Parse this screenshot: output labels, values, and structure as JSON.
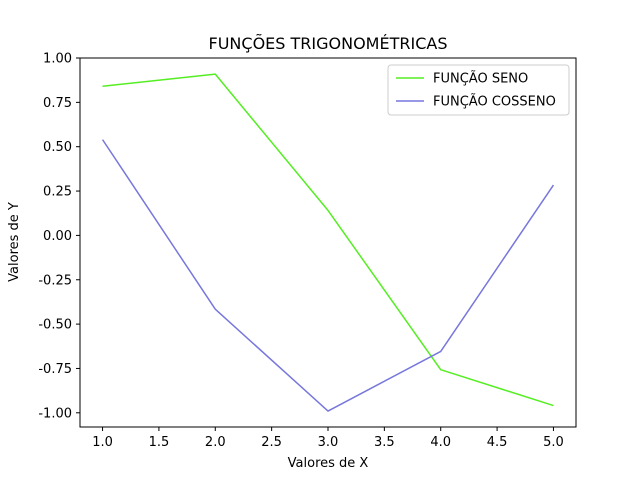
{
  "chart_data": {
    "type": "line",
    "title": "FUNÇÕES TRIGONOMÉTRICAS",
    "xlabel": "Valores de X",
    "ylabel": "Valores de Y",
    "x": [
      1,
      2,
      3,
      4,
      5
    ],
    "xlim": [
      0.8,
      5.2
    ],
    "ylim": [
      -1.08,
      1.0
    ],
    "xticks": [
      "1.0",
      "1.5",
      "2.0",
      "2.5",
      "3.0",
      "3.5",
      "4.0",
      "4.5",
      "5.0"
    ],
    "yticks": [
      "1.00",
      "0.75",
      "0.50",
      "0.25",
      "0.00",
      "-0.25",
      "-0.50",
      "-0.75",
      "-1.00"
    ],
    "grid": false,
    "legend_position": "top-right",
    "series": [
      {
        "name": "FUNÇÃO SENO",
        "color": "#55ee22",
        "values": [
          0.841,
          0.909,
          0.141,
          -0.757,
          -0.959
        ]
      },
      {
        "name": "FUNÇÃO COSSENO",
        "color": "#7777dd",
        "values": [
          0.54,
          -0.416,
          -0.99,
          -0.654,
          0.284
        ]
      }
    ]
  }
}
